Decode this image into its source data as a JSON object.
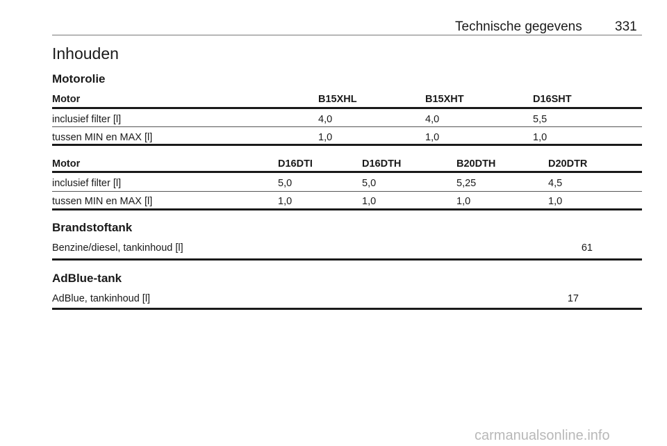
{
  "header": {
    "section": "Technische gegevens",
    "page_number": "331"
  },
  "title": "Inhouden",
  "motorolie": {
    "heading": "Motorolie",
    "tables": [
      {
        "columns": [
          "Motor",
          "B15XHL",
          "B15XHT",
          "D16SHT"
        ],
        "rows": [
          [
            "inclusief filter [l]",
            "4,0",
            "4,0",
            "5,5"
          ],
          [
            "tussen MIN en MAX [l]",
            "1,0",
            "1,0",
            "1,0"
          ]
        ]
      },
      {
        "columns": [
          "Motor",
          "D16DTI",
          "D16DTH",
          "B20DTH",
          "D20DTR"
        ],
        "rows": [
          [
            "inclusief filter [l]",
            "5,0",
            "5,0",
            "5,25",
            "4,5"
          ],
          [
            "tussen MIN en MAX [l]",
            "1,0",
            "1,0",
            "1,0",
            "1,0"
          ]
        ]
      }
    ]
  },
  "brandstoftank": {
    "heading": "Brandstoftank",
    "label": "Benzine/diesel, tankinhoud [l]",
    "value": "61"
  },
  "adblue": {
    "heading": "AdBlue-tank",
    "label": "AdBlue, tankinhoud [l]",
    "value": "17"
  },
  "watermark": "carmanualsonline.info"
}
